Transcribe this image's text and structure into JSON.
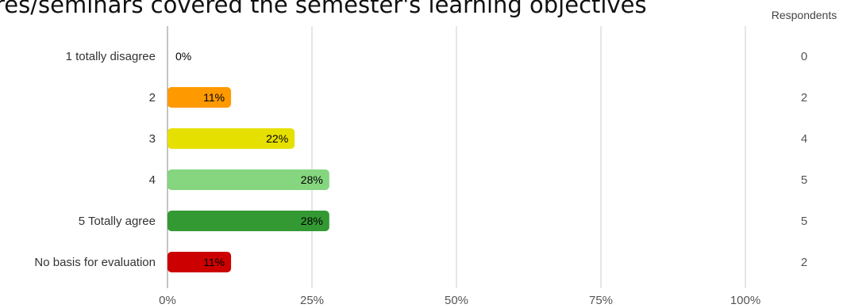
{
  "chart_data": {
    "type": "bar",
    "orientation": "horizontal",
    "title": "res/seminars covered the semester's learning objectives",
    "categories": [
      "1 totally disagree",
      "2",
      "3",
      "4",
      "5 Totally agree",
      "No basis for evaluation"
    ],
    "series": [
      {
        "values": [
          0,
          11,
          22,
          28,
          28,
          11
        ],
        "value_labels": [
          "0%",
          "11%",
          "22%",
          "28%",
          "28%",
          "11%"
        ],
        "colors": [
          "#ff9900",
          "#ff9900",
          "#e6e000",
          "#85d67f",
          "#339933",
          "#cc0000"
        ]
      }
    ],
    "respondents_header": "Respondents",
    "respondents": [
      "0",
      "2",
      "4",
      "5",
      "5",
      "2"
    ],
    "x_ticks": [
      "0%",
      "25%",
      "50%",
      "75%",
      "100%"
    ],
    "x_tick_values": [
      0,
      25,
      50,
      75,
      100
    ],
    "xlim": [
      0,
      100
    ],
    "xlabel": "",
    "ylabel": "",
    "grid": true,
    "legend": "none"
  }
}
